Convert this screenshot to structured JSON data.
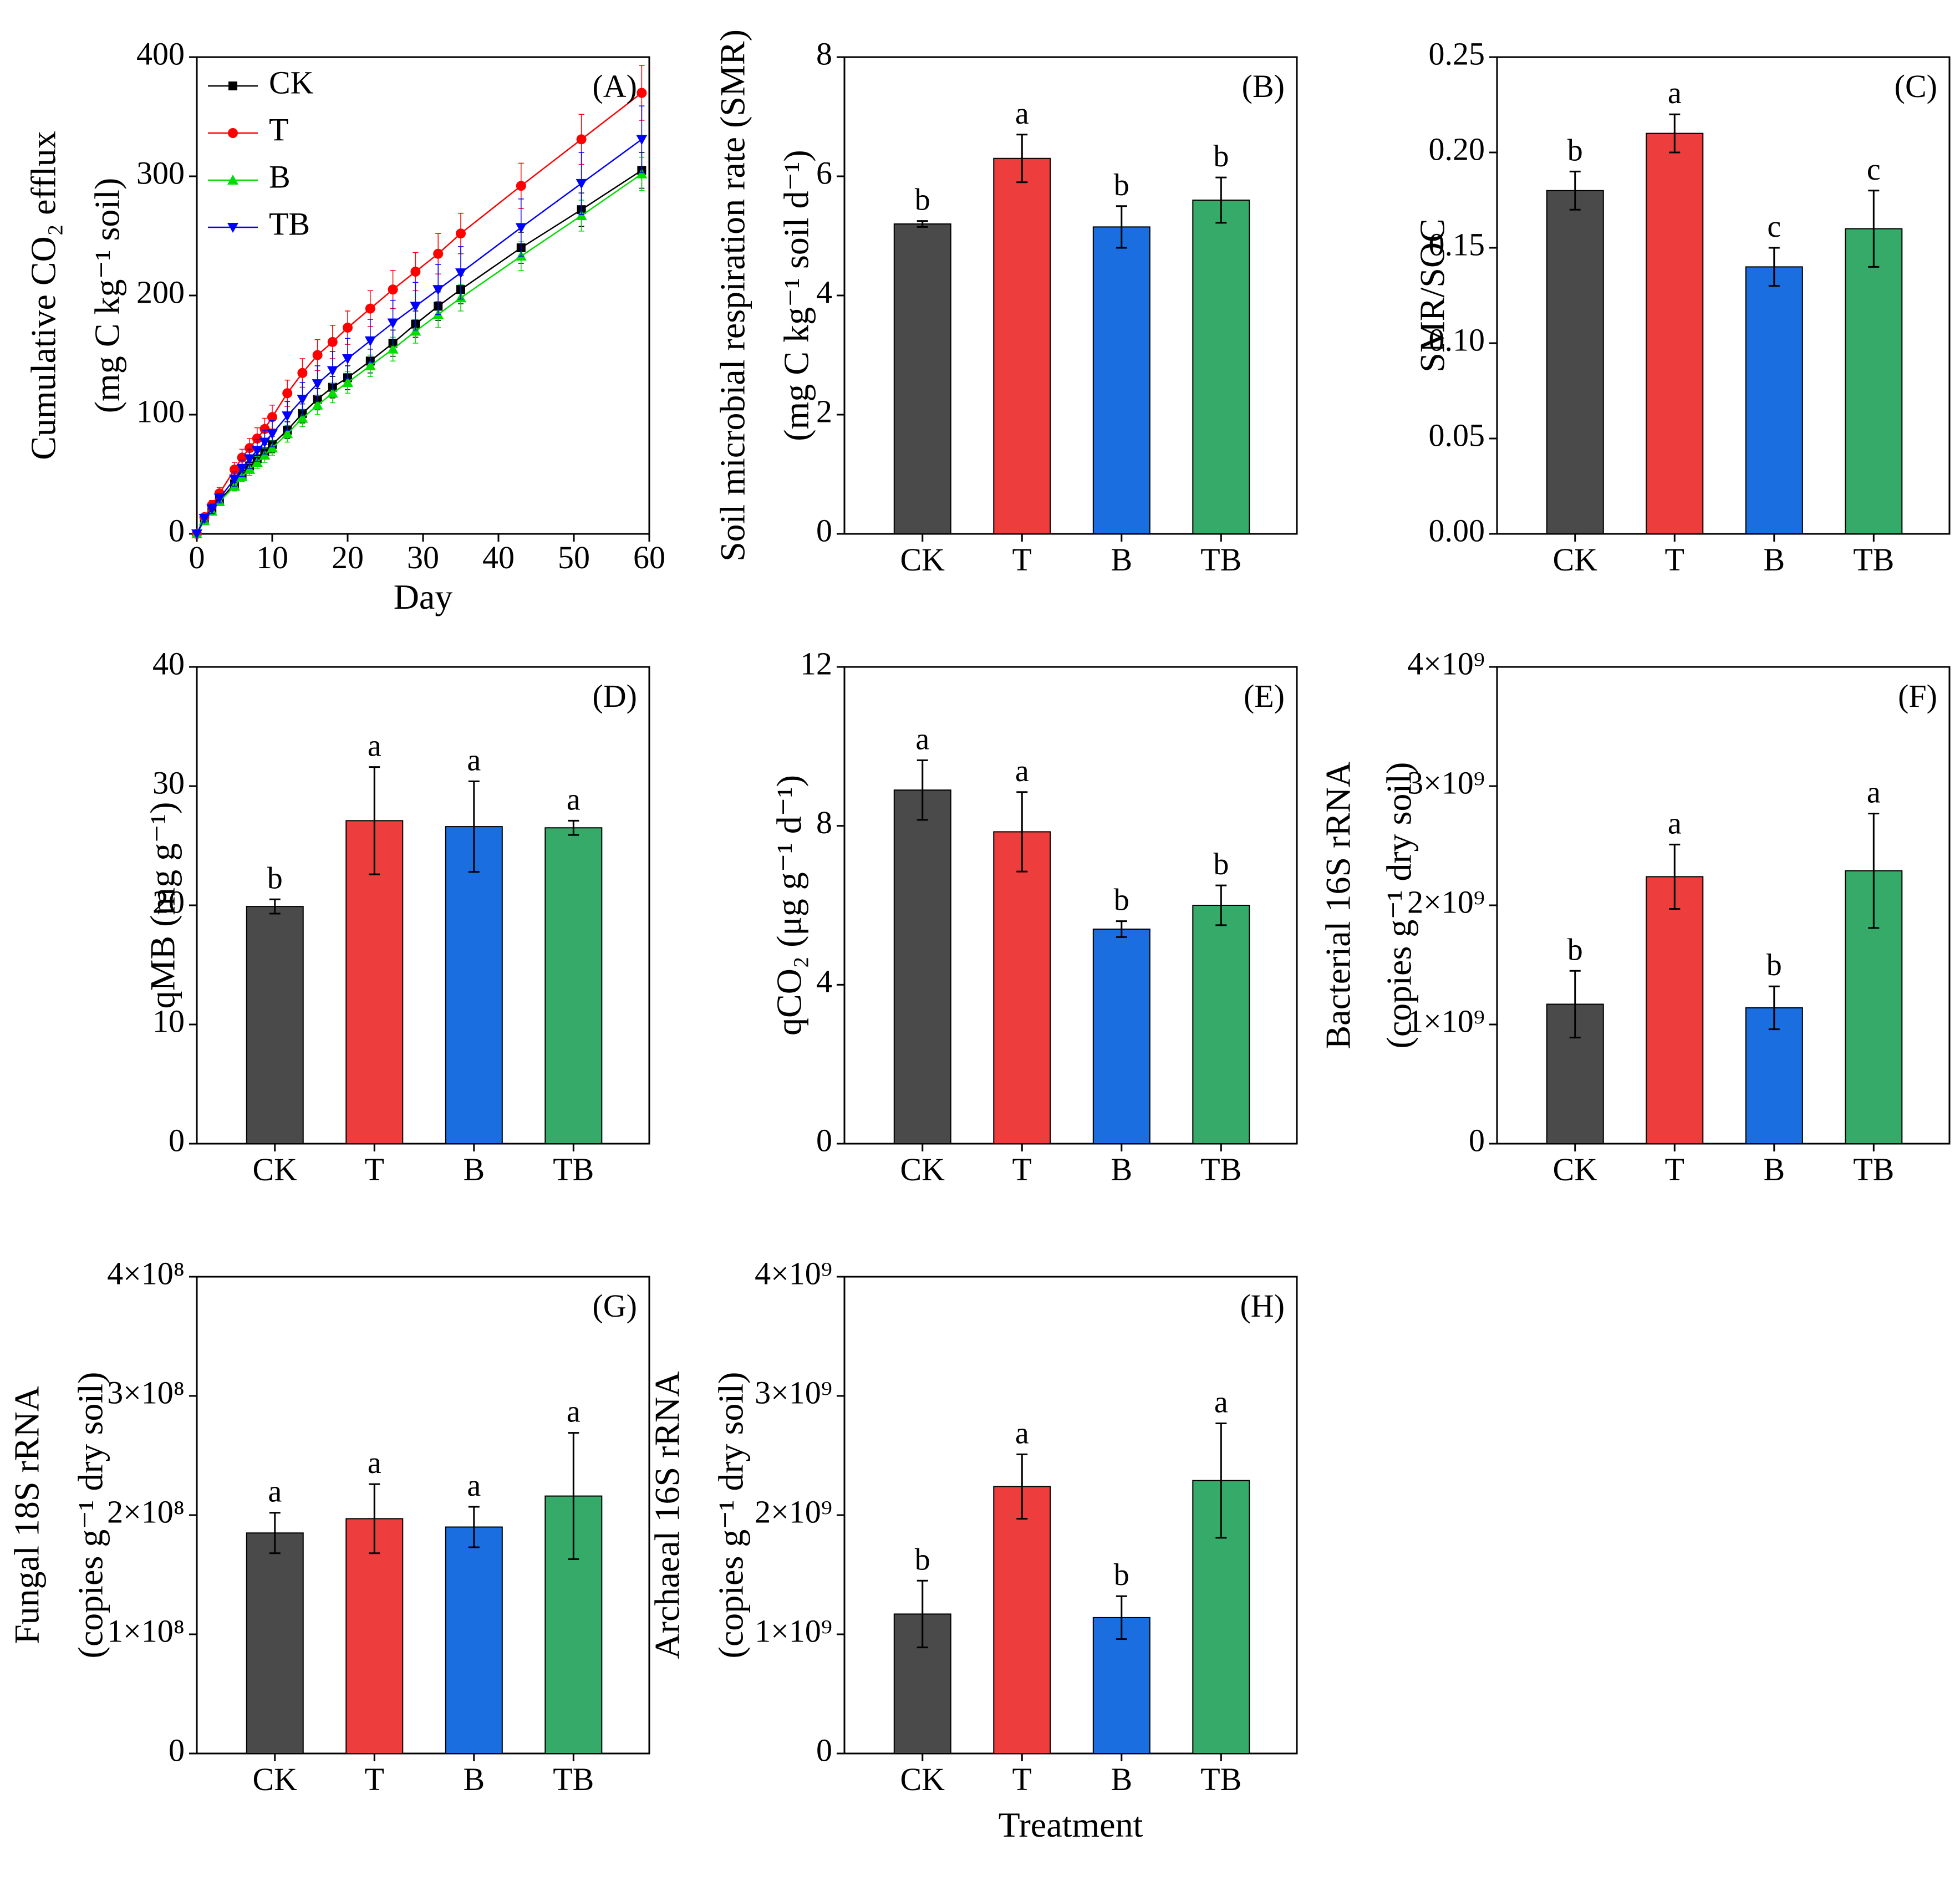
{
  "chart_data": [
    {
      "id": "A",
      "type": "line",
      "panel_label": "(A)",
      "xlabel": "Day",
      "ylabel_line1": "Cumulative CO₂ efflux",
      "ylabel_line2": "(mg C kg⁻¹ soil)",
      "xlim": [
        0,
        60
      ],
      "ylim": [
        0,
        400
      ],
      "xticks": [
        0,
        10,
        20,
        30,
        40,
        50,
        60
      ],
      "yticks": [
        0,
        100,
        200,
        300,
        400
      ],
      "x": [
        0,
        1,
        2,
        3,
        5,
        6,
        7,
        8,
        9,
        10,
        12,
        14,
        16,
        18,
        20,
        23,
        26,
        29,
        32,
        35,
        43,
        51,
        59
      ],
      "series": [
        {
          "name": "CK",
          "color": "#000000",
          "marker": "square",
          "values": [
            0,
            12,
            20,
            28,
            42,
            50,
            57,
            63,
            69,
            75,
            87,
            101,
            113,
            123,
            131,
            145,
            160,
            176,
            191,
            205,
            240,
            272,
            305
          ],
          "errors": [
            0,
            2,
            3,
            3,
            4,
            5,
            5,
            6,
            6,
            7,
            7,
            8,
            9,
            9,
            10,
            10,
            11,
            11,
            12,
            12,
            13,
            14,
            15
          ]
        },
        {
          "name": "T",
          "color": "#ff0000",
          "marker": "circle",
          "values": [
            0,
            14,
            24,
            34,
            54,
            64,
            72,
            80,
            88,
            98,
            118,
            135,
            150,
            161,
            173,
            189,
            205,
            220,
            235,
            252,
            292,
            331,
            370
          ],
          "errors": [
            0,
            3,
            4,
            5,
            6,
            7,
            8,
            9,
            9,
            10,
            11,
            12,
            13,
            14,
            14,
            15,
            16,
            16,
            17,
            17,
            19,
            21,
            23
          ]
        },
        {
          "name": "B",
          "color": "#00dd00",
          "marker": "triangle-up",
          "values": [
            0,
            11,
            19,
            27,
            40,
            48,
            54,
            60,
            66,
            72,
            84,
            97,
            108,
            118,
            127,
            141,
            155,
            170,
            184,
            198,
            233,
            267,
            302
          ],
          "errors": [
            0,
            2,
            3,
            3,
            4,
            4,
            5,
            5,
            6,
            6,
            7,
            7,
            8,
            8,
            9,
            9,
            10,
            10,
            11,
            11,
            12,
            13,
            14
          ]
        },
        {
          "name": "TB",
          "color": "#0000ff",
          "marker": "triangle-down",
          "values": [
            0,
            13,
            21,
            30,
            46,
            55,
            63,
            70,
            77,
            84,
            99,
            113,
            126,
            137,
            147,
            162,
            177,
            191,
            205,
            219,
            257,
            294,
            331
          ],
          "errors": [
            0,
            3,
            4,
            4,
            6,
            7,
            8,
            9,
            10,
            11,
            12,
            14,
            15,
            16,
            17,
            18,
            19,
            20,
            21,
            22,
            24,
            26,
            28
          ]
        }
      ]
    },
    {
      "id": "B",
      "type": "bar",
      "panel_label": "(B)",
      "ylabel_line1": "Soil microbial respiration rate (SMR)",
      "ylabel_line2": "(mg C kg⁻¹ soil d⁻¹)",
      "categories": [
        "CK",
        "T",
        "B",
        "TB"
      ],
      "values": [
        5.2,
        6.3,
        5.15,
        5.6
      ],
      "errors": [
        0.05,
        0.4,
        0.35,
        0.38
      ],
      "letters": [
        "b",
        "a",
        "b",
        "b"
      ],
      "ylim": [
        0,
        8
      ],
      "yticks": [
        "0",
        "2",
        "4",
        "6",
        "8"
      ],
      "tick_values": [
        0,
        2,
        4,
        6,
        8
      ]
    },
    {
      "id": "C",
      "type": "bar",
      "panel_label": "(C)",
      "ylabel_line1": "SMR/SOC",
      "ylabel_line2": "",
      "categories": [
        "CK",
        "T",
        "B",
        "TB"
      ],
      "values": [
        0.18,
        0.21,
        0.14,
        0.16
      ],
      "errors": [
        0.01,
        0.01,
        0.01,
        0.02
      ],
      "letters": [
        "b",
        "a",
        "c",
        "c"
      ],
      "ylim": [
        0,
        0.25
      ],
      "yticks": [
        "0.00",
        "0.05",
        "0.10",
        "0.15",
        "0.20",
        "0.25"
      ],
      "tick_values": [
        0,
        0.05,
        0.1,
        0.15,
        0.2,
        0.25
      ]
    },
    {
      "id": "D",
      "type": "bar",
      "panel_label": "(D)",
      "ylabel_line1": "qMB (mg g⁻¹)",
      "ylabel_line2": "",
      "categories": [
        "CK",
        "T",
        "B",
        "TB"
      ],
      "values": [
        19.9,
        27.1,
        26.6,
        26.5
      ],
      "errors": [
        0.6,
        4.5,
        3.8,
        0.6
      ],
      "letters": [
        "b",
        "a",
        "a",
        "a"
      ],
      "ylim": [
        0,
        40
      ],
      "yticks": [
        "0",
        "10",
        "20",
        "30",
        "40"
      ],
      "tick_values": [
        0,
        10,
        20,
        30,
        40
      ]
    },
    {
      "id": "E",
      "type": "bar",
      "panel_label": "(E)",
      "ylabel_line1": "qCO₂ (μg g⁻¹ d⁻¹)",
      "ylabel_line2": "",
      "categories": [
        "CK",
        "T",
        "B",
        "TB"
      ],
      "values": [
        8.9,
        7.85,
        5.4,
        6.0
      ],
      "errors": [
        0.75,
        1.0,
        0.2,
        0.5
      ],
      "letters": [
        "a",
        "a",
        "b",
        "b"
      ],
      "ylim": [
        0,
        12
      ],
      "yticks": [
        "0",
        "4",
        "8",
        "12"
      ],
      "tick_values": [
        0,
        4,
        8,
        12
      ]
    },
    {
      "id": "F",
      "type": "bar",
      "panel_label": "(F)",
      "ylabel_line1": "Bacterial 16S rRNA",
      "ylabel_line2": "(copies g⁻¹ dry soil)",
      "categories": [
        "CK",
        "T",
        "B",
        "TB"
      ],
      "values": [
        1170000000.0,
        2240000000.0,
        1140000000.0,
        2290000000.0
      ],
      "errors": [
        280000000.0,
        270000000.0,
        180000000.0,
        480000000.0
      ],
      "letters": [
        "b",
        "a",
        "b",
        "a"
      ],
      "ylim": [
        0,
        4000000000.0
      ],
      "yticks": [
        "0",
        "1×10⁹",
        "2×10⁹",
        "3×10⁹",
        "4×10⁹"
      ],
      "tick_values": [
        0,
        1000000000.0,
        2000000000.0,
        3000000000.0,
        4000000000.0
      ]
    },
    {
      "id": "G",
      "type": "bar",
      "panel_label": "(G)",
      "ylabel_line1": "Fungal 18S rRNA",
      "ylabel_line2": "(copies g⁻¹ dry soil)",
      "categories": [
        "CK",
        "T",
        "B",
        "TB"
      ],
      "values": [
        185000000.0,
        197000000.0,
        190000000.0,
        216000000.0
      ],
      "errors": [
        17000000.0,
        29000000.0,
        17000000.0,
        53000000.0
      ],
      "letters": [
        "a",
        "a",
        "a",
        "a"
      ],
      "ylim": [
        0,
        400000000.0
      ],
      "yticks": [
        "0",
        "1×10⁸",
        "2×10⁸",
        "3×10⁸",
        "4×10⁸"
      ],
      "tick_values": [
        0,
        100000000.0,
        200000000.0,
        300000000.0,
        400000000.0
      ]
    },
    {
      "id": "H",
      "type": "bar",
      "panel_label": "(H)",
      "ylabel_line1": "Archaeal 16S rRNA",
      "ylabel_line2": "(copies g⁻¹ dry soil)",
      "xlabel": "Treatment",
      "categories": [
        "CK",
        "T",
        "B",
        "TB"
      ],
      "values": [
        1170000000.0,
        2240000000.0,
        1140000000.0,
        2290000000.0
      ],
      "errors": [
        280000000.0,
        270000000.0,
        180000000.0,
        480000000.0
      ],
      "letters": [
        "b",
        "a",
        "b",
        "a"
      ],
      "ylim": [
        0,
        4000000000.0
      ],
      "yticks": [
        "0",
        "1×10⁹",
        "2×10⁹",
        "3×10⁹",
        "4×10⁹"
      ],
      "tick_values": [
        0,
        1000000000.0,
        2000000000.0,
        3000000000.0,
        4000000000.0
      ]
    }
  ],
  "colors": {
    "CK": "#4a4a4a",
    "T": "#ee3d3d",
    "B": "#1b6ee0",
    "TB": "#36ab69"
  }
}
